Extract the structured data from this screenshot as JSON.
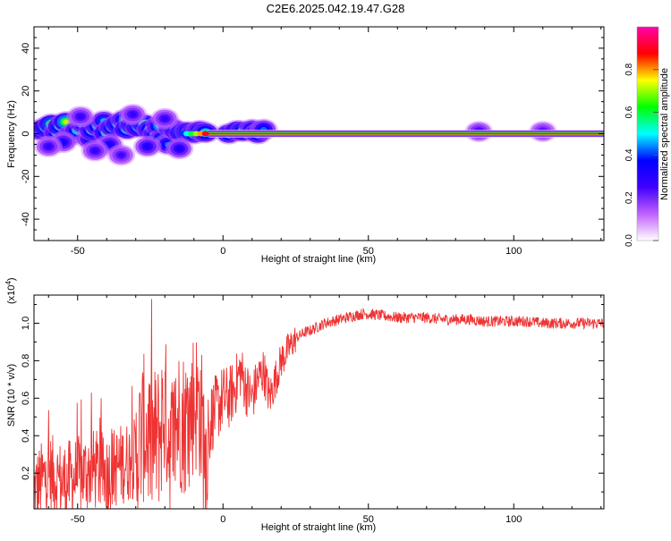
{
  "figure": {
    "title": "C2E6.2025.042.19.47.G28"
  },
  "chart_data": [
    {
      "type": "heatmap",
      "xlabel": "Height of straight line (km)",
      "ylabel": "Frequency (Hz)",
      "xlim": [
        -65,
        131
      ],
      "ylim": [
        -50,
        50
      ],
      "xticks": [
        -50,
        0,
        50,
        100
      ],
      "yticks": [
        -40,
        -20,
        0,
        20,
        40
      ],
      "colorbar": {
        "label": "Normalized spectral amplitude",
        "range": [
          0,
          1
        ],
        "ticks": [
          "0.0",
          "0.2",
          "0.4",
          "0.6",
          "0.8"
        ],
        "colors": [
          "#ffffff",
          "#c060ff",
          "#4000ff",
          "#0000ff",
          "#00ffff",
          "#00ff00",
          "#ffff00",
          "#ff0000",
          "#ff00aa"
        ]
      },
      "tone": {
        "frequency": 0,
        "x_range": [
          -5,
          131
        ],
        "amplitude": 1.0
      },
      "blobs": [
        {
          "x": -63,
          "f": 1.5,
          "a": 0.45
        },
        {
          "x": -61,
          "f": 3.0,
          "a": 0.55
        },
        {
          "x": -59,
          "f": 4.5,
          "a": 0.6
        },
        {
          "x": -57,
          "f": 0.5,
          "a": 0.5
        },
        {
          "x": -56,
          "f": 3.5,
          "a": 0.55
        },
        {
          "x": -54,
          "f": 5.5,
          "a": 0.65
        },
        {
          "x": -52,
          "f": -0.5,
          "a": 0.4
        },
        {
          "x": -50,
          "f": 1.5,
          "a": 0.5
        },
        {
          "x": -48,
          "f": 4.5,
          "a": 0.45
        },
        {
          "x": -46,
          "f": -2.5,
          "a": 0.3
        },
        {
          "x": -45,
          "f": 1.5,
          "a": 0.5
        },
        {
          "x": -43,
          "f": 3.5,
          "a": 0.5
        },
        {
          "x": -41,
          "f": 6.0,
          "a": 0.4
        },
        {
          "x": -40,
          "f": 0.5,
          "a": 0.55
        },
        {
          "x": -38,
          "f": 3.0,
          "a": 0.5
        },
        {
          "x": -36,
          "f": 4.5,
          "a": 0.55
        },
        {
          "x": -34,
          "f": 6.5,
          "a": 0.45
        },
        {
          "x": -33,
          "f": 2.0,
          "a": 0.55
        },
        {
          "x": -31,
          "f": 4.0,
          "a": 0.5
        },
        {
          "x": -29,
          "f": 3.0,
          "a": 0.55
        },
        {
          "x": -27,
          "f": 4.5,
          "a": 0.55
        },
        {
          "x": -25,
          "f": 2.0,
          "a": 0.5
        },
        {
          "x": -23,
          "f": 0.0,
          "a": 0.5
        },
        {
          "x": -22,
          "f": 3.5,
          "a": 0.45
        },
        {
          "x": -21,
          "f": -2.5,
          "a": 0.4
        },
        {
          "x": -19,
          "f": -5.0,
          "a": 0.35
        },
        {
          "x": -18,
          "f": 3.0,
          "a": 0.45
        },
        {
          "x": -16,
          "f": 1.5,
          "a": 0.5
        },
        {
          "x": -14,
          "f": 0.5,
          "a": 0.55
        },
        {
          "x": -12,
          "f": 1.0,
          "a": 0.5
        },
        {
          "x": -10,
          "f": 0.0,
          "a": 0.5
        },
        {
          "x": -8,
          "f": 1.5,
          "a": 0.45
        },
        {
          "x": -6,
          "f": 0.5,
          "a": 0.5
        },
        {
          "x": 2,
          "f": 0.0,
          "a": 0.5
        },
        {
          "x": 5,
          "f": 1.5,
          "a": 0.55
        },
        {
          "x": 7,
          "f": 1.0,
          "a": 0.55
        },
        {
          "x": 10,
          "f": 2.0,
          "a": 0.4
        },
        {
          "x": 12,
          "f": 0.0,
          "a": 0.5
        },
        {
          "x": 14,
          "f": 2.0,
          "a": 0.35
        },
        {
          "x": -26,
          "f": -6.0,
          "a": 0.25
        },
        {
          "x": -39,
          "f": -5.0,
          "a": 0.25
        },
        {
          "x": -44,
          "f": -8.0,
          "a": 0.2
        },
        {
          "x": -15,
          "f": -7.0,
          "a": 0.25
        },
        {
          "x": -31,
          "f": 9.0,
          "a": 0.2
        },
        {
          "x": -55,
          "f": -4.0,
          "a": 0.25
        },
        {
          "x": -49,
          "f": 8.0,
          "a": 0.2
        },
        {
          "x": -35,
          "f": -10.0,
          "a": 0.18
        },
        {
          "x": -20,
          "f": 7.0,
          "a": 0.2
        },
        {
          "x": 88,
          "f": 1.0,
          "a": 0.2
        },
        {
          "x": 110,
          "f": 1.0,
          "a": 0.18
        },
        {
          "x": -60,
          "f": -6.0,
          "a": 0.2
        }
      ]
    },
    {
      "type": "line",
      "xlabel": "Height of straight line (km)",
      "ylabel": "SNR (10 * v/v)",
      "multiplier": "(x10",
      "multiplier_exp": "4",
      "multiplier_close": ")",
      "xlim": [
        -65,
        131
      ],
      "ylim": [
        0.01,
        1.15
      ],
      "xticks": [
        -50,
        0,
        50,
        100
      ],
      "yticks": [
        0.2,
        0.4,
        0.6,
        0.8,
        1.0
      ],
      "color": "#ee3333",
      "series": [
        {
          "x": [
            -65,
            -60,
            -55,
            -50,
            -45,
            -40,
            -35,
            -30,
            -27,
            -25,
            -22,
            -20,
            -18,
            -15,
            -12,
            -10,
            -8,
            -6,
            -4,
            -2,
            0,
            2,
            4,
            6,
            8,
            10,
            12,
            14,
            16,
            18,
            20,
            22,
            25,
            28,
            30,
            35,
            40,
            45,
            48,
            50,
            55,
            60,
            65,
            70,
            75,
            80,
            85,
            90,
            95,
            100,
            105,
            110,
            115,
            120,
            125,
            131
          ],
          "y": [
            0.1,
            0.2,
            0.15,
            0.18,
            0.22,
            0.2,
            0.25,
            0.28,
            0.45,
            0.35,
            0.4,
            0.55,
            0.35,
            0.5,
            0.45,
            0.6,
            0.55,
            0.3,
            0.5,
            0.55,
            0.6,
            0.6,
            0.65,
            0.75,
            0.65,
            0.6,
            0.7,
            0.75,
            0.6,
            0.7,
            0.8,
            0.85,
            0.92,
            0.95,
            0.96,
            1.0,
            1.02,
            1.04,
            1.05,
            1.05,
            1.04,
            1.03,
            1.03,
            1.03,
            1.02,
            1.02,
            1.02,
            1.01,
            1.01,
            1.01,
            1.01,
            1.0,
            1.0,
            1.0,
            1.0,
            1.0
          ]
        }
      ]
    }
  ]
}
